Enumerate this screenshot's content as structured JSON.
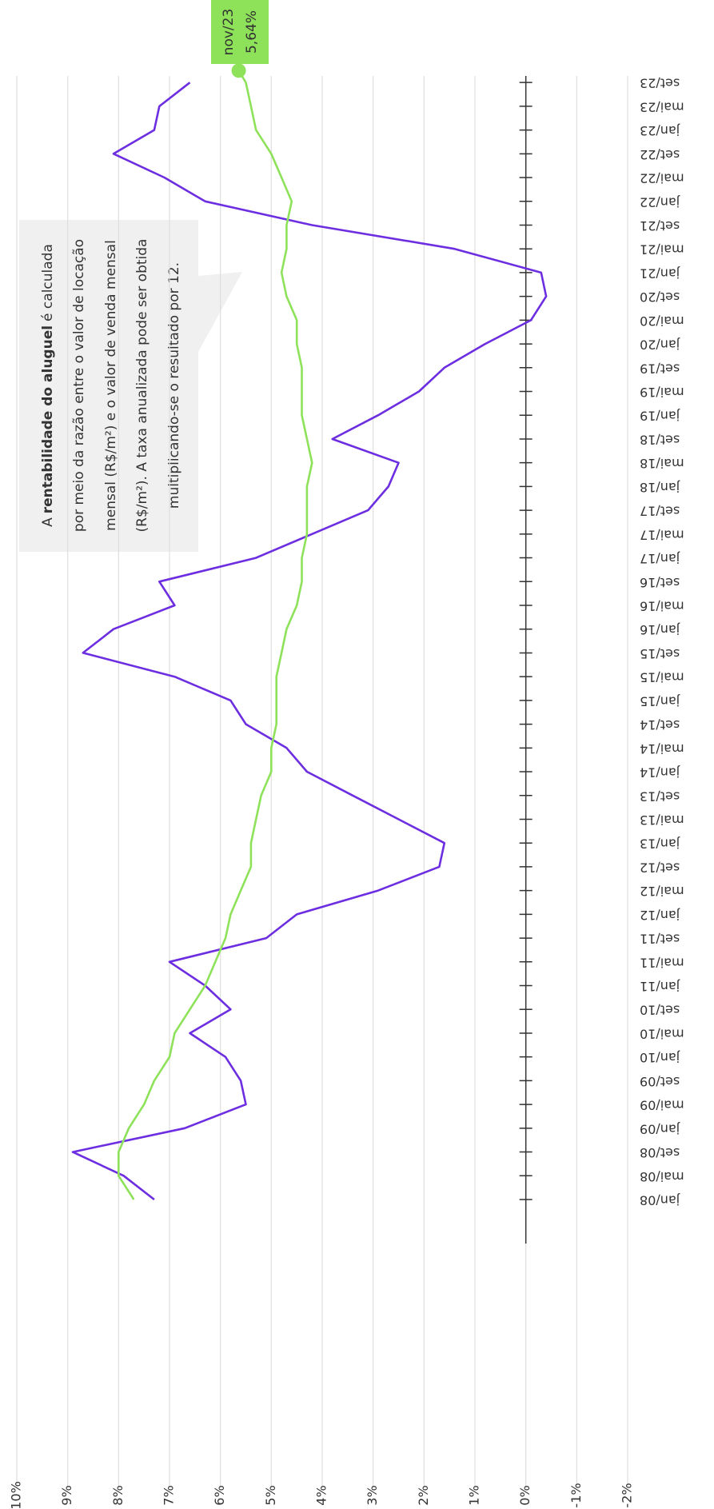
{
  "chart_data": {
    "type": "line",
    "categories": [
      "jan/08",
      "mai/08",
      "set/08",
      "jan/09",
      "mai/09",
      "set/09",
      "jan/10",
      "mai/10",
      "set/10",
      "jan/11",
      "mai/11",
      "set/11",
      "jan/12",
      "mai/12",
      "set/12",
      "jan/13",
      "mai/13",
      "set/13",
      "jan/14",
      "mai/14",
      "set/14",
      "jan/15",
      "mai/15",
      "set/15",
      "jan/16",
      "mai/16",
      "set/16",
      "jan/17",
      "mai/17",
      "set/17",
      "jan/18",
      "mai/18",
      "set/18",
      "jan/19",
      "mai/19",
      "set/19",
      "jan/20",
      "mai/20",
      "set/20",
      "jan/21",
      "mai/21",
      "set/21",
      "jan/22",
      "mai/22",
      "set/22",
      "jan/23",
      "mai/23",
      "set/23"
    ],
    "series": [
      {
        "color": "#6c2ee0",
        "values": [
          7.3,
          7.9,
          8.9,
          6.7,
          5.5,
          5.6,
          5.9,
          6.6,
          5.8,
          6.3,
          7.0,
          5.1,
          4.5,
          2.9,
          1.7,
          1.6,
          2.5,
          3.4,
          4.3,
          4.7,
          5.5,
          5.8,
          6.9,
          8.7,
          8.1,
          6.9,
          7.2,
          5.3,
          4.2,
          3.1,
          2.7,
          2.5,
          3.8,
          2.9,
          2.1,
          1.6,
          0.8,
          -0.1,
          -0.4,
          -0.3,
          1.4,
          4.2,
          6.3,
          7.1,
          8.1,
          7.3,
          7.2,
          6.6
        ]
      },
      {
        "color": "#8ee25a",
        "values": [
          7.7,
          8.0,
          8.0,
          7.8,
          7.5,
          7.3,
          7.0,
          6.9,
          6.6,
          6.3,
          6.1,
          5.9,
          5.8,
          5.6,
          5.4,
          5.4,
          5.3,
          5.2,
          5.0,
          5.0,
          4.9,
          4.9,
          4.9,
          4.8,
          4.7,
          4.5,
          4.4,
          4.4,
          4.3,
          4.3,
          4.3,
          4.2,
          4.3,
          4.4,
          4.4,
          4.4,
          4.5,
          4.5,
          4.7,
          4.8,
          4.7,
          4.7,
          4.6,
          4.8,
          5.0,
          5.3,
          5.4,
          5.5
        ]
      }
    ],
    "ylim": [
      -2,
      10
    ],
    "yticks": [
      {
        "value": 10,
        "label": "10%"
      },
      {
        "value": 9,
        "label": "9%"
      },
      {
        "value": 8,
        "label": "8%"
      },
      {
        "value": 7,
        "label": "7%"
      },
      {
        "value": 6,
        "label": "6%"
      },
      {
        "value": 5,
        "label": "5%"
      },
      {
        "value": 4,
        "label": "4%"
      },
      {
        "value": 3,
        "label": "3%"
      },
      {
        "value": 2,
        "label": "2%"
      },
      {
        "value": 1,
        "label": "1%"
      },
      {
        "value": 0,
        "label": "0%"
      },
      {
        "value": -1,
        "label": "-1%"
      },
      {
        "value": -2,
        "label": "-2%"
      }
    ],
    "grid": true,
    "annotation": {
      "x": "nov/23",
      "value": 5.64,
      "label": "5,64%"
    }
  },
  "note": {
    "first": [
      "A",
      "rentabilidade do aluguel",
      "é calculada"
    ],
    "lines": [
      "por meio da razão entre o valor de locação",
      "mensal (R$/m²) e o valor de venda mensal",
      "(R$/m²).  A taxa anualizada pode ser obtida",
      "multiplicando-se  o resultado por 12."
    ]
  }
}
